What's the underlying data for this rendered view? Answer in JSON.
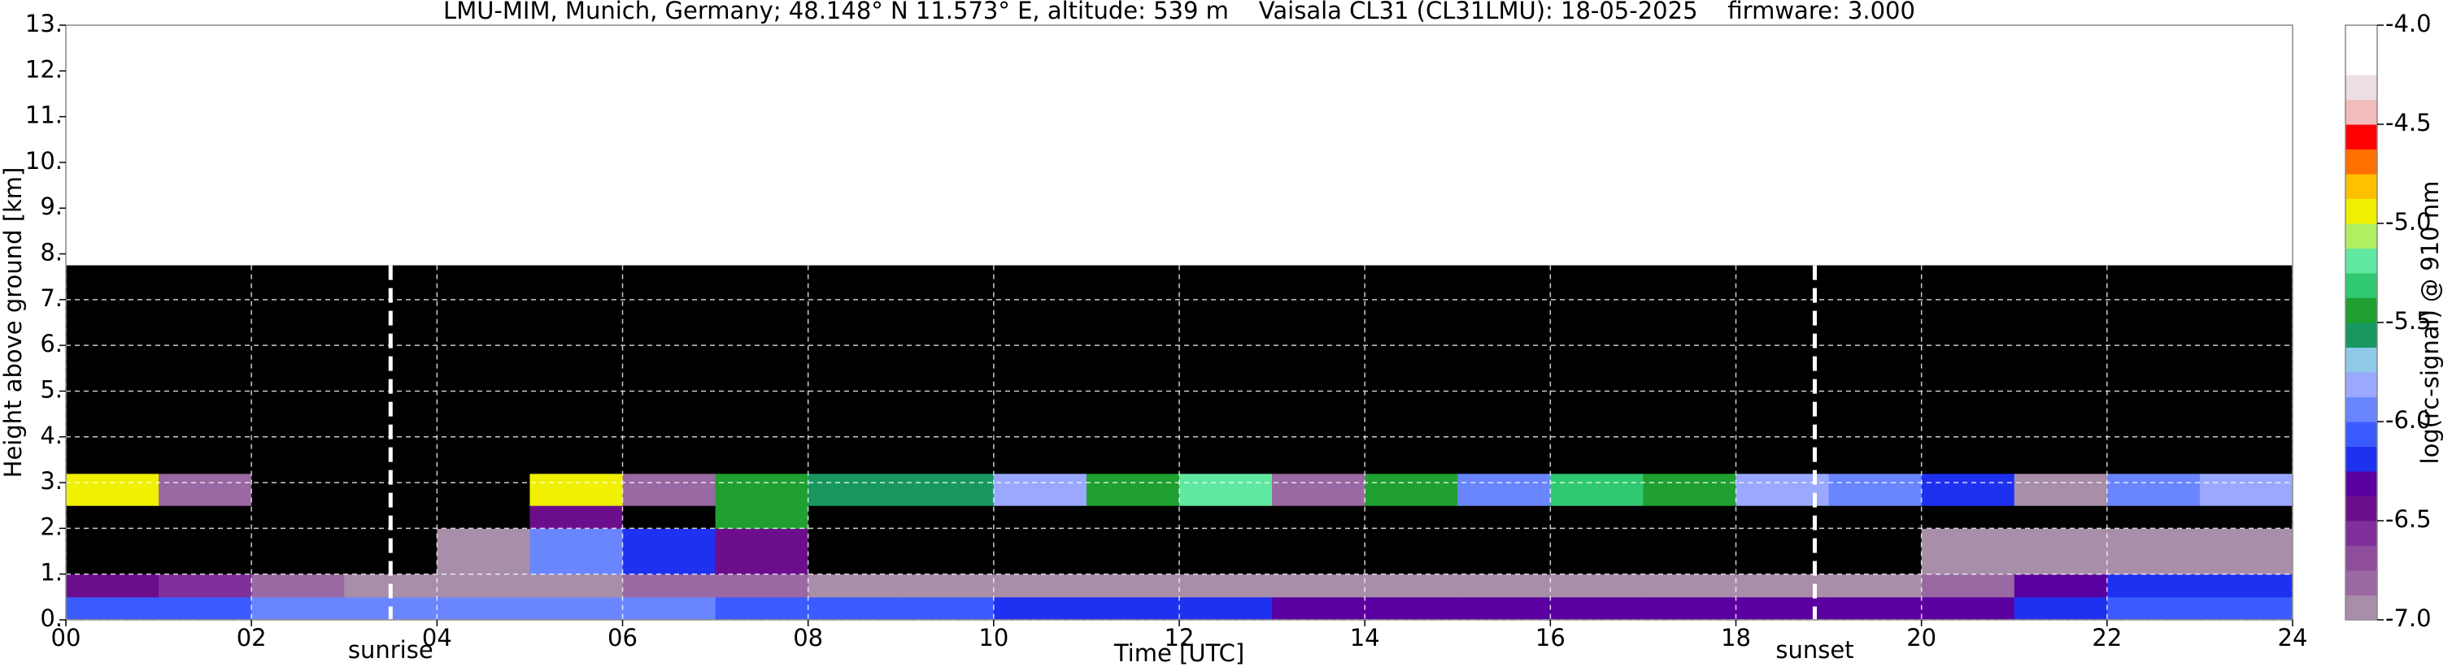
{
  "chart_data": {
    "type": "heatmap",
    "title": "LMU-MIM, Munich, Germany; 48.148° N 11.573° E, altitude: 539 m    Vaisala CL31 (CL31LMU): 18-05-2025    firmware: 3.000",
    "xlabel": "Time [UTC]",
    "ylabel": "Height above ground [km]",
    "xlim": [
      0,
      24
    ],
    "ylim": [
      0,
      13
    ],
    "xticks": [
      {
        "value": 0,
        "label": "00"
      },
      {
        "value": 2,
        "label": "02"
      },
      {
        "value": 4,
        "label": "04"
      },
      {
        "value": 6,
        "label": "06"
      },
      {
        "value": 8,
        "label": "08"
      },
      {
        "value": 10,
        "label": "10"
      },
      {
        "value": 12,
        "label": "12"
      },
      {
        "value": 14,
        "label": "14"
      },
      {
        "value": 16,
        "label": "16"
      },
      {
        "value": 18,
        "label": "18"
      },
      {
        "value": 20,
        "label": "20"
      },
      {
        "value": 22,
        "label": "22"
      },
      {
        "value": 24,
        "label": "24"
      }
    ],
    "yticks": [
      {
        "value": 0,
        "label": "0."
      },
      {
        "value": 1,
        "label": "1."
      },
      {
        "value": 2,
        "label": "2."
      },
      {
        "value": 3,
        "label": "3."
      },
      {
        "value": 4,
        "label": "4."
      },
      {
        "value": 5,
        "label": "5."
      },
      {
        "value": 6,
        "label": "6."
      },
      {
        "value": 7,
        "label": "7."
      },
      {
        "value": 8,
        "label": "8."
      },
      {
        "value": 9,
        "label": "9."
      },
      {
        "value": 10,
        "label": "10."
      },
      {
        "value": 11,
        "label": "11."
      },
      {
        "value": 12,
        "label": "12."
      },
      {
        "value": 13,
        "label": "13."
      }
    ],
    "grid": true,
    "annotations": [
      {
        "text": "sunrise",
        "x": 3.5
      },
      {
        "text": "sunset",
        "x": 18.85
      }
    ],
    "x_edges": [
      0,
      1,
      2,
      3,
      4,
      5,
      6,
      7,
      8,
      9,
      10,
      11,
      12,
      13,
      14,
      15,
      16,
      17,
      18,
      19,
      20,
      21,
      22,
      23,
      24
    ],
    "y_edges": [
      0,
      0.5,
      1,
      2,
      2.5,
      3.2,
      5,
      7.75
    ],
    "values": [
      [
        -6.1,
        -6.1,
        -6.0,
        -6.0,
        -6.0,
        -6.0,
        -6.0,
        -6.1,
        -6.1,
        -6.1,
        -6.2,
        -6.2,
        -6.2,
        -6.3,
        -6.3,
        -6.3,
        -6.3,
        -6.3,
        -6.3,
        -6.3,
        -6.3,
        -6.2,
        -6.1,
        -6.1
      ],
      [
        -6.5,
        -6.6,
        -6.8,
        -6.9,
        -6.9,
        -6.9,
        -6.8,
        -6.8,
        -6.9,
        -6.9,
        -6.9,
        -6.9,
        -6.9,
        -6.9,
        -6.9,
        -6.9,
        -6.9,
        -6.9,
        -6.9,
        -6.9,
        -6.8,
        -6.3,
        -6.2,
        -6.2
      ],
      [
        -7.2,
        -7.2,
        -7.2,
        -7.2,
        -6.9,
        -6.0,
        -6.2,
        -6.4,
        -7.2,
        -7.2,
        -7.2,
        -7.2,
        -7.2,
        -7.2,
        -7.2,
        -7.2,
        -7.2,
        -7.2,
        -7.2,
        -7.2,
        -7.0,
        -7.0,
        -7.0,
        -7.0
      ],
      [
        -7.2,
        -7.2,
        -7.2,
        -7.2,
        -7.2,
        -6.5,
        -7.2,
        -5.5,
        -7.2,
        -7.2,
        -7.2,
        -7.2,
        -7.2,
        -7.2,
        -7.2,
        -7.2,
        -7.2,
        -7.2,
        -7.2,
        -7.2,
        -7.2,
        -7.2,
        -7.2,
        -7.2
      ],
      [
        -5.0,
        -6.8,
        -7.2,
        -7.2,
        -7.2,
        -5.0,
        -6.8,
        -5.5,
        -5.6,
        -5.6,
        -5.8,
        -5.4,
        -5.2,
        -6.8,
        -5.5,
        -6.0,
        -5.3,
        -5.4,
        -5.8,
        -5.9,
        -6.2,
        -7.0,
        -5.9,
        -5.8
      ],
      [
        -7.2,
        -7.2,
        -7.2,
        -7.2,
        -7.2,
        -7.2,
        -7.2,
        -7.2,
        -7.2,
        -7.2,
        -7.2,
        -7.2,
        -7.2,
        -7.2,
        -7.2,
        -7.2,
        -7.2,
        -7.2,
        -7.2,
        -7.2,
        -7.2,
        -7.2,
        -7.2,
        -7.2
      ],
      [
        -7.2,
        -7.2,
        -7.2,
        -7.2,
        -7.2,
        -7.2,
        -7.2,
        -7.2,
        -7.2,
        -7.2,
        -7.2,
        -7.2,
        -7.2,
        -7.2,
        -7.2,
        -7.2,
        -7.2,
        -7.2,
        -7.2,
        -7.2,
        -7.2,
        -7.2,
        -7.2,
        -7.2
      ]
    ],
    "colorbar": {
      "label": "log(rc-signal) @ 910 nm",
      "under_color": "#000000",
      "bounds": [
        -7,
        -6.875,
        -6.75,
        -6.625,
        -6.5,
        -6.375,
        -6.25,
        -6.125,
        -6,
        -5.875,
        -5.75,
        -5.625,
        -5.5,
        -5.375,
        -5.25,
        -5.125,
        -5,
        -4.875,
        -4.75,
        -4.625,
        -4.5,
        -4.375,
        -4.25,
        -4.125,
        -4
      ],
      "colors": [
        "#a88ea8",
        "#9a68a2",
        "#8e4e9c",
        "#80309a",
        "#6c0e8c",
        "#5a00a0",
        "#1e30f0",
        "#3a5cff",
        "#6a86ff",
        "#9aa8ff",
        "#8ecae8",
        "#189860",
        "#20a030",
        "#30c870",
        "#60e8a0",
        "#b0f060",
        "#f0f000",
        "#ffc000",
        "#ff7000",
        "#ff0000",
        "#f2bcbc",
        "#ebdfe3",
        "#ffffff",
        "#ffffff"
      ],
      "ticks": [
        {
          "value": -7,
          "label": "-7.0"
        },
        {
          "value": -6.5,
          "label": "-6.5"
        },
        {
          "value": -6,
          "label": "-6.0"
        },
        {
          "value": -5.5,
          "label": "-5.5"
        },
        {
          "value": -5,
          "label": "-5.0"
        },
        {
          "value": -4.5,
          "label": "-4.5"
        },
        {
          "value": -4,
          "label": "-4.0"
        }
      ]
    }
  }
}
